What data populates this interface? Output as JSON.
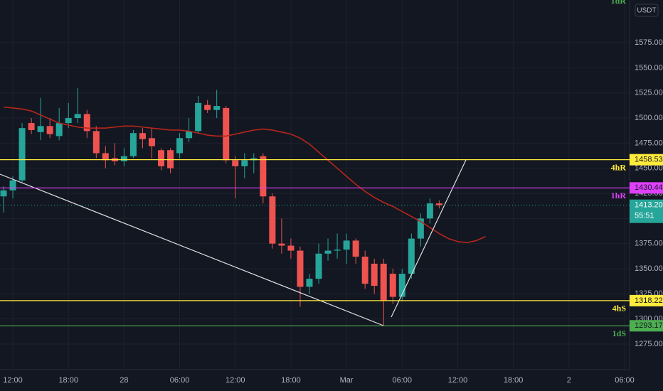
{
  "chart_data": {
    "type": "candlestick",
    "currency": "USDT",
    "categories": [
      null,
      "12:00",
      null,
      null,
      null,
      null,
      null,
      "18:00",
      null,
      null,
      null,
      null,
      null,
      "28",
      null,
      null,
      null,
      null,
      null,
      "06:00",
      null,
      null,
      null,
      null,
      null,
      "12:00",
      null,
      null,
      null,
      null,
      null,
      "18:00",
      null,
      null,
      null,
      null,
      null,
      "Mar",
      null,
      null,
      null,
      null,
      null,
      "06:00",
      null,
      null,
      null,
      null,
      null,
      "12:00",
      null,
      null,
      null,
      null,
      null,
      "18:00",
      null,
      null,
      null,
      null,
      null,
      "2",
      null,
      null,
      null,
      null,
      null,
      "06:00"
    ],
    "open": [
      1422,
      1428,
      1438,
      1495,
      1486,
      1492,
      1482,
      1495,
      1500,
      1504,
      1487,
      1465,
      1460,
      1457,
      1462,
      1485,
      1480,
      1468,
      1468,
      1465,
      1480,
      1487,
      1513,
      1508,
      1510,
      1458,
      1452,
      1458,
      1462,
      1422,
      1375,
      1373,
      1368,
      1332,
      1340,
      1365,
      1368,
      1369,
      1378,
      1362,
      1355,
      1355,
      1345,
      1322,
      1345,
      1380,
      1400,
      1415,
      null,
      null,
      null,
      null,
      null,
      null,
      null,
      null,
      null,
      null,
      null,
      null,
      null,
      null,
      null,
      null,
      null,
      null,
      null,
      null
    ],
    "high": [
      1432,
      1442,
      1495,
      1500,
      1520,
      1500,
      1510,
      1515,
      1530,
      1508,
      1492,
      1472,
      1475,
      1470,
      1488,
      1490,
      1490,
      1470,
      1470,
      1485,
      1500,
      1522,
      1518,
      1528,
      1512,
      1462,
      1465,
      1465,
      1465,
      1425,
      1400,
      1380,
      1372,
      1345,
      1375,
      1380,
      1385,
      1385,
      1380,
      1368,
      1360,
      1360,
      1350,
      1350,
      1385,
      1405,
      1420,
      1418,
      null,
      null,
      null,
      null,
      null,
      null,
      null,
      null,
      null,
      null,
      null,
      null,
      null,
      null,
      null,
      null,
      null,
      null,
      null,
      null
    ],
    "low": [
      1406,
      1420,
      1436,
      1484,
      1478,
      1480,
      1478,
      1490,
      1495,
      1480,
      1460,
      1450,
      1453,
      1452,
      1460,
      1470,
      1460,
      1448,
      1445,
      1460,
      1476,
      1485,
      1505,
      1500,
      1455,
      1420,
      1440,
      1445,
      1415,
      1370,
      1365,
      1360,
      1312,
      1325,
      1335,
      1358,
      1360,
      1355,
      1355,
      1330,
      1325,
      1293,
      1315,
      1318,
      1340,
      1372,
      1395,
      1410,
      null,
      null,
      null,
      null,
      null,
      null,
      null,
      null,
      null,
      null,
      null,
      null,
      null,
      null,
      null,
      null,
      null,
      null,
      null,
      null
    ],
    "close": [
      1428,
      1438,
      1490,
      1488,
      1492,
      1484,
      1495,
      1500,
      1504,
      1487,
      1465,
      1458,
      1457,
      1462,
      1485,
      1479,
      1472,
      1452,
      1450,
      1480,
      1487,
      1515,
      1508,
      1512,
      1458,
      1452,
      1458,
      1460,
      1422,
      1375,
      1373,
      1368,
      1332,
      1340,
      1365,
      1368,
      1369,
      1378,
      1362,
      1335,
      1333,
      1318,
      1322,
      1345,
      1380,
      1400,
      1415,
      1413.2,
      null,
      null,
      null,
      null,
      null,
      null,
      null,
      null,
      null,
      null,
      null,
      null,
      null,
      null,
      null,
      null,
      null,
      null,
      null,
      null
    ],
    "up_color": "#26a69a",
    "down_color": "#ef5350",
    "last_price_label": "1413.20",
    "countdown": "55:51",
    "moving_average": {
      "color": "#b7261a",
      "values": [
        1511,
        1510,
        1509,
        1507,
        1503,
        1499,
        1495,
        1493,
        1491,
        1490,
        1490,
        1490,
        1491,
        1492,
        1492,
        1491,
        1490,
        1489,
        1488,
        1488,
        1487,
        1485,
        1483,
        1482,
        1482,
        1484,
        1486,
        1488,
        1489,
        1488,
        1486,
        1484,
        1480,
        1474,
        1466,
        1458,
        1450,
        1442,
        1434,
        1427,
        1421,
        1416,
        1412,
        1407,
        1402,
        1397,
        1391,
        1385,
        1380,
        1377,
        1376,
        1378,
        1382,
        null,
        null,
        null,
        null,
        null,
        null,
        null,
        null,
        null,
        null,
        null,
        null,
        null,
        null,
        null
      ]
    },
    "levels": [
      {
        "name": "4hR",
        "value": 1458.53,
        "label": "1458.53",
        "color": "#ffeb3b"
      },
      {
        "name": "1hR",
        "value": 1430.44,
        "label": "1430.44",
        "color": "#e040fb"
      },
      {
        "name": "4hS",
        "value": 1318.22,
        "label": "1318.22",
        "color": "#ffeb3b"
      },
      {
        "name": "1dS",
        "value": 1293.17,
        "label": "1293.17",
        "color": "#4caf50"
      }
    ],
    "offscreen_level": {
      "name": "1dR",
      "color": "#4caf50"
    },
    "ylim": [
      1249.5,
      1617.5
    ],
    "yticks": [
      {
        "value": 1275,
        "label": "1275.00"
      },
      {
        "value": 1300,
        "label": "1300.00"
      },
      {
        "value": 1325,
        "label": "1325.00"
      },
      {
        "value": 1350,
        "label": "1350.00"
      },
      {
        "value": 1375,
        "label": "1375.00"
      },
      {
        "value": 1400,
        "label": "1400.00"
      },
      {
        "value": 1425,
        "label": "1425.00"
      },
      {
        "value": 1450,
        "label": "1450.00"
      },
      {
        "value": 1475,
        "label": "1475.00"
      },
      {
        "value": 1500,
        "label": "1500.00"
      },
      {
        "value": 1525,
        "label": "1525.00"
      },
      {
        "value": 1550,
        "label": "1550.00"
      },
      {
        "value": 1575,
        "label": "1575.00"
      }
    ],
    "grid": true
  }
}
